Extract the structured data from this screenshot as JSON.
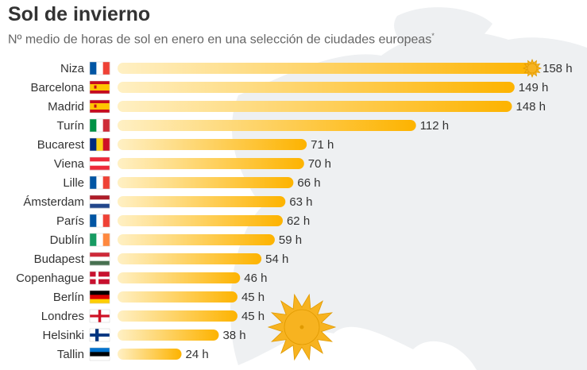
{
  "title": "Sol de invierno",
  "subtitle": "Nº medio de horas de sol en enero en una selección de ciudades europeas",
  "subtitle_mark": "*",
  "colors": {
    "bar_start": "#fff0c4",
    "bar_end": "#fdb300",
    "sun": "#f7b320",
    "sun_stroke": "#e09a00",
    "map": "#eef0f2"
  },
  "icons": {
    "sun_small": "sun-icon",
    "sun_big": "sun-icon"
  },
  "chart_data": {
    "type": "bar",
    "orientation": "horizontal",
    "unit": "h",
    "title": "Sol de invierno",
    "subtitle": "Nº medio de horas de sol en enero en una selección de ciudades europeas",
    "categories": [
      "Niza",
      "Barcelona",
      "Madrid",
      "Turín",
      "Bucarest",
      "Viena",
      "Lille",
      "Ámsterdam",
      "París",
      "Dublín",
      "Budapest",
      "Copenhague",
      "Berlín",
      "Londres",
      "Helsinki",
      "Tallin"
    ],
    "values": [
      158,
      149,
      148,
      112,
      71,
      70,
      66,
      63,
      62,
      59,
      54,
      46,
      45,
      45,
      38,
      24
    ],
    "value_labels": [
      "158 h",
      "149 h",
      "148 h",
      "112 h",
      "71 h",
      "70 h",
      "66 h",
      "63 h",
      "62 h",
      "59 h",
      "54 h",
      "46 h",
      "45 h",
      "45 h",
      "38 h",
      "24 h"
    ],
    "flags": [
      "France",
      "Spain",
      "Spain",
      "Italy",
      "Romania",
      "Austria",
      "France",
      "Netherlands",
      "France",
      "Ireland",
      "Hungary",
      "Denmark",
      "Germany",
      "England",
      "Finland",
      "Estonia"
    ],
    "xlim": [
      0,
      158
    ],
    "grid": false,
    "legend": "none"
  }
}
